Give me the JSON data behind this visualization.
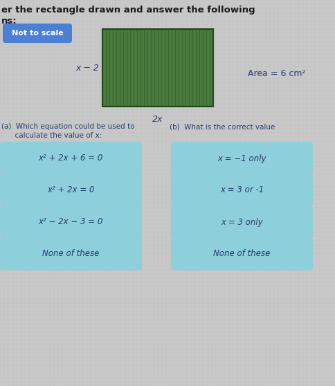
{
  "title_line1": "er the rectangle drawn and answer the following",
  "title_line2": "ns:",
  "not_to_scale_label": "Not to scale",
  "rect_color": "#4a7c3f",
  "rect_stripe_color": "#2d5a20",
  "rect_width_label": "2x",
  "rect_height_label": "x − 2",
  "area_label": "Area = 6 cm²",
  "part_a_label": "(a)  Which equation could be used to\n       calculate the value of x:",
  "part_b_label": "(b)  What is the correct value",
  "button_color": "#8ecfdc",
  "button_border_color": "#6ab5c8",
  "not_to_scale_color": "#4a7fd4",
  "left_buttons": [
    "x² + 2x + 6 = 0",
    "x² + 2x = 0",
    "x² − 2x − 3 = 0",
    "None of these"
  ],
  "right_buttons": [
    "x = −1 only",
    "x = 3 or -1",
    "x = 3 only",
    "None of these"
  ],
  "bg_color": "#c8c8c8",
  "text_color": "#2a3a6e",
  "title_color": "#1a1a1a"
}
